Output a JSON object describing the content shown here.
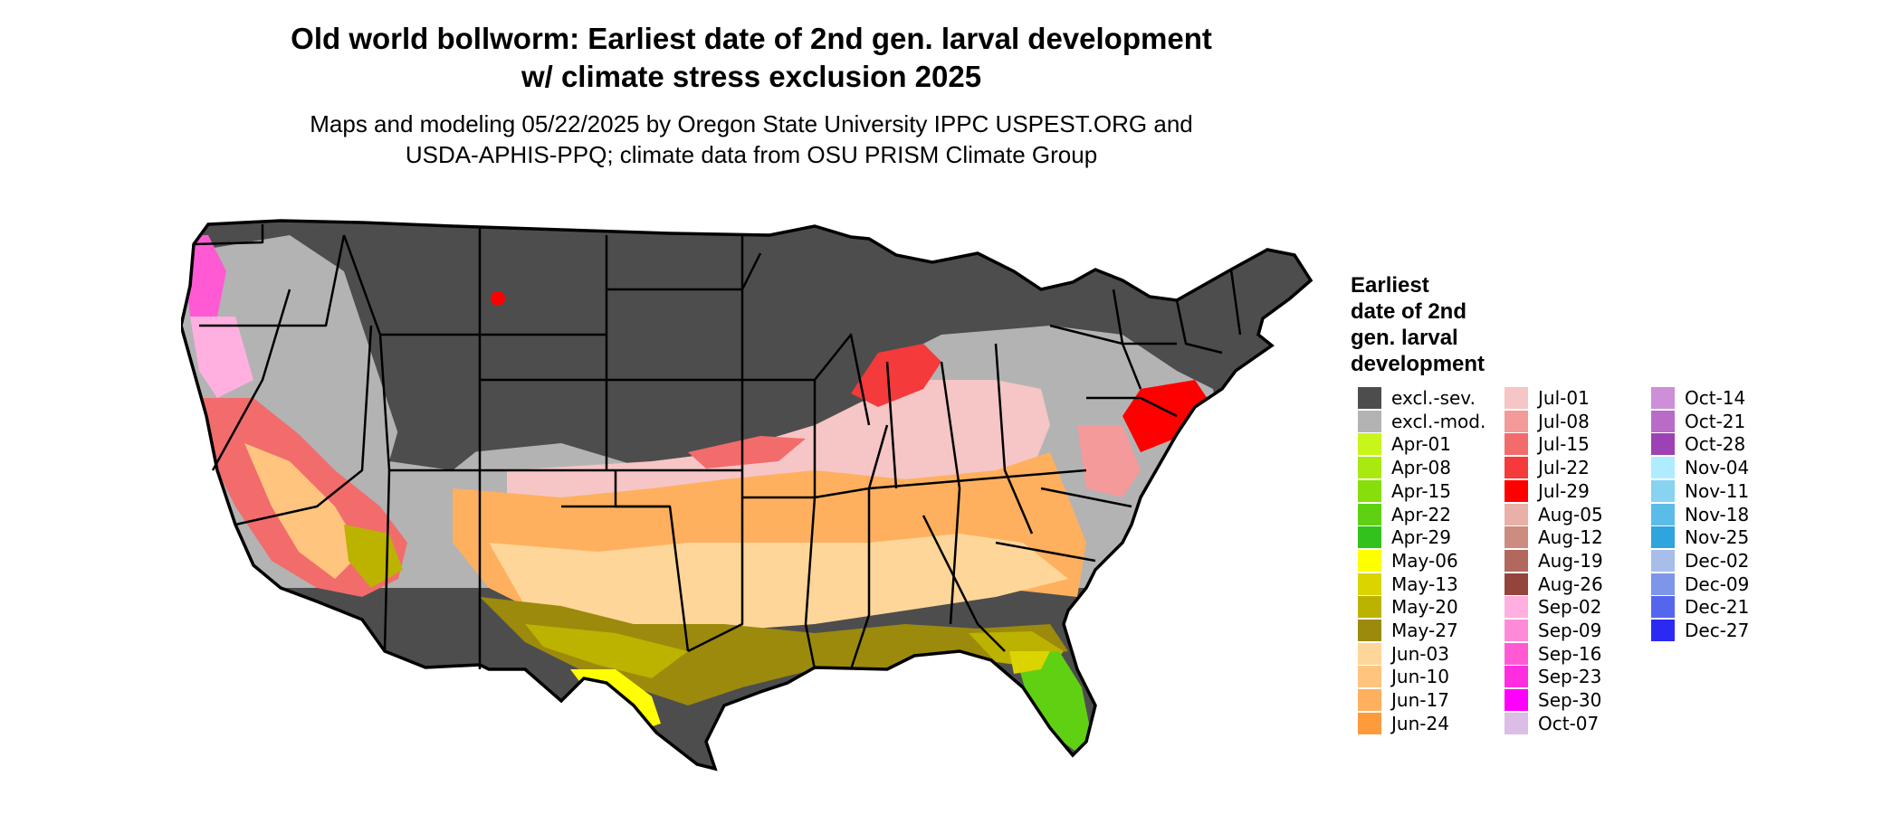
{
  "title": {
    "line1": "Old world bollworm: Earliest date of 2nd gen. larval development",
    "line2": "w/ climate stress exclusion 2025"
  },
  "subtitle": {
    "line1": "Maps and modeling 05/22/2025 by Oregon State University IPPC USPEST.ORG and",
    "line2": "USDA-APHIS-PPQ; climate data from OSU PRISM Climate Group"
  },
  "legend": {
    "title_lines": [
      "Earliest",
      "date of 2nd",
      "gen. larval",
      "development"
    ],
    "columns": [
      [
        {
          "label": "excl.-sev.",
          "color": "#4d4d4d"
        },
        {
          "label": "excl.-mod.",
          "color": "#b3b3b3"
        },
        {
          "label": "Apr-01",
          "color": "#c8f51a"
        },
        {
          "label": "Apr-08",
          "color": "#a8ea10"
        },
        {
          "label": "Apr-15",
          "color": "#86de0b"
        },
        {
          "label": "Apr-22",
          "color": "#5fd112"
        },
        {
          "label": "Apr-29",
          "color": "#33c21b"
        },
        {
          "label": "May-06",
          "color": "#ffff00"
        },
        {
          "label": "May-13",
          "color": "#dcd400"
        },
        {
          "label": "May-20",
          "color": "#bcb200"
        },
        {
          "label": "May-27",
          "color": "#9c8a0c"
        },
        {
          "label": "Jun-03",
          "color": "#ffd699"
        },
        {
          "label": "Jun-10",
          "color": "#ffc47e"
        },
        {
          "label": "Jun-17",
          "color": "#ffb05e"
        },
        {
          "label": "Jun-24",
          "color": "#ff9a3d"
        }
      ],
      [
        {
          "label": "Jul-01",
          "color": "#f6c5c5"
        },
        {
          "label": "Jul-08",
          "color": "#f49a9a"
        },
        {
          "label": "Jul-15",
          "color": "#f26c6c"
        },
        {
          "label": "Jul-22",
          "color": "#f43a3a"
        },
        {
          "label": "Jul-29",
          "color": "#ff0000"
        },
        {
          "label": "Aug-05",
          "color": "#e8b0a6"
        },
        {
          "label": "Aug-12",
          "color": "#cc8c80"
        },
        {
          "label": "Aug-19",
          "color": "#b2685c"
        },
        {
          "label": "Aug-26",
          "color": "#94443a"
        },
        {
          "label": "Sep-02",
          "color": "#ffb0e0"
        },
        {
          "label": "Sep-09",
          "color": "#ff8ad8"
        },
        {
          "label": "Sep-16",
          "color": "#ff5ad4"
        },
        {
          "label": "Sep-23",
          "color": "#ff2de0"
        },
        {
          "label": "Sep-30",
          "color": "#ff00ff"
        },
        {
          "label": "Oct-07",
          "color": "#dcbde6"
        }
      ],
      [
        {
          "label": "Oct-14",
          "color": "#cc8fd8"
        },
        {
          "label": "Oct-21",
          "color": "#b86cc8"
        },
        {
          "label": "Oct-28",
          "color": "#9c42b4"
        },
        {
          "label": "Nov-04",
          "color": "#b0ecff"
        },
        {
          "label": "Nov-11",
          "color": "#88d2f2"
        },
        {
          "label": "Nov-18",
          "color": "#5cbce8"
        },
        {
          "label": "Nov-25",
          "color": "#30a4dc"
        },
        {
          "label": "Dec-02",
          "color": "#a6bee8"
        },
        {
          "label": "Dec-09",
          "color": "#7e96ea"
        },
        {
          "label": "Dec-21",
          "color": "#5466ee"
        },
        {
          "label": "Dec-27",
          "color": "#2a2af2"
        }
      ]
    ]
  },
  "map": {
    "region": "United States (contiguous)",
    "outline_color": "#000000",
    "state_line_color": "#000000",
    "background_color": "#ffffff"
  }
}
